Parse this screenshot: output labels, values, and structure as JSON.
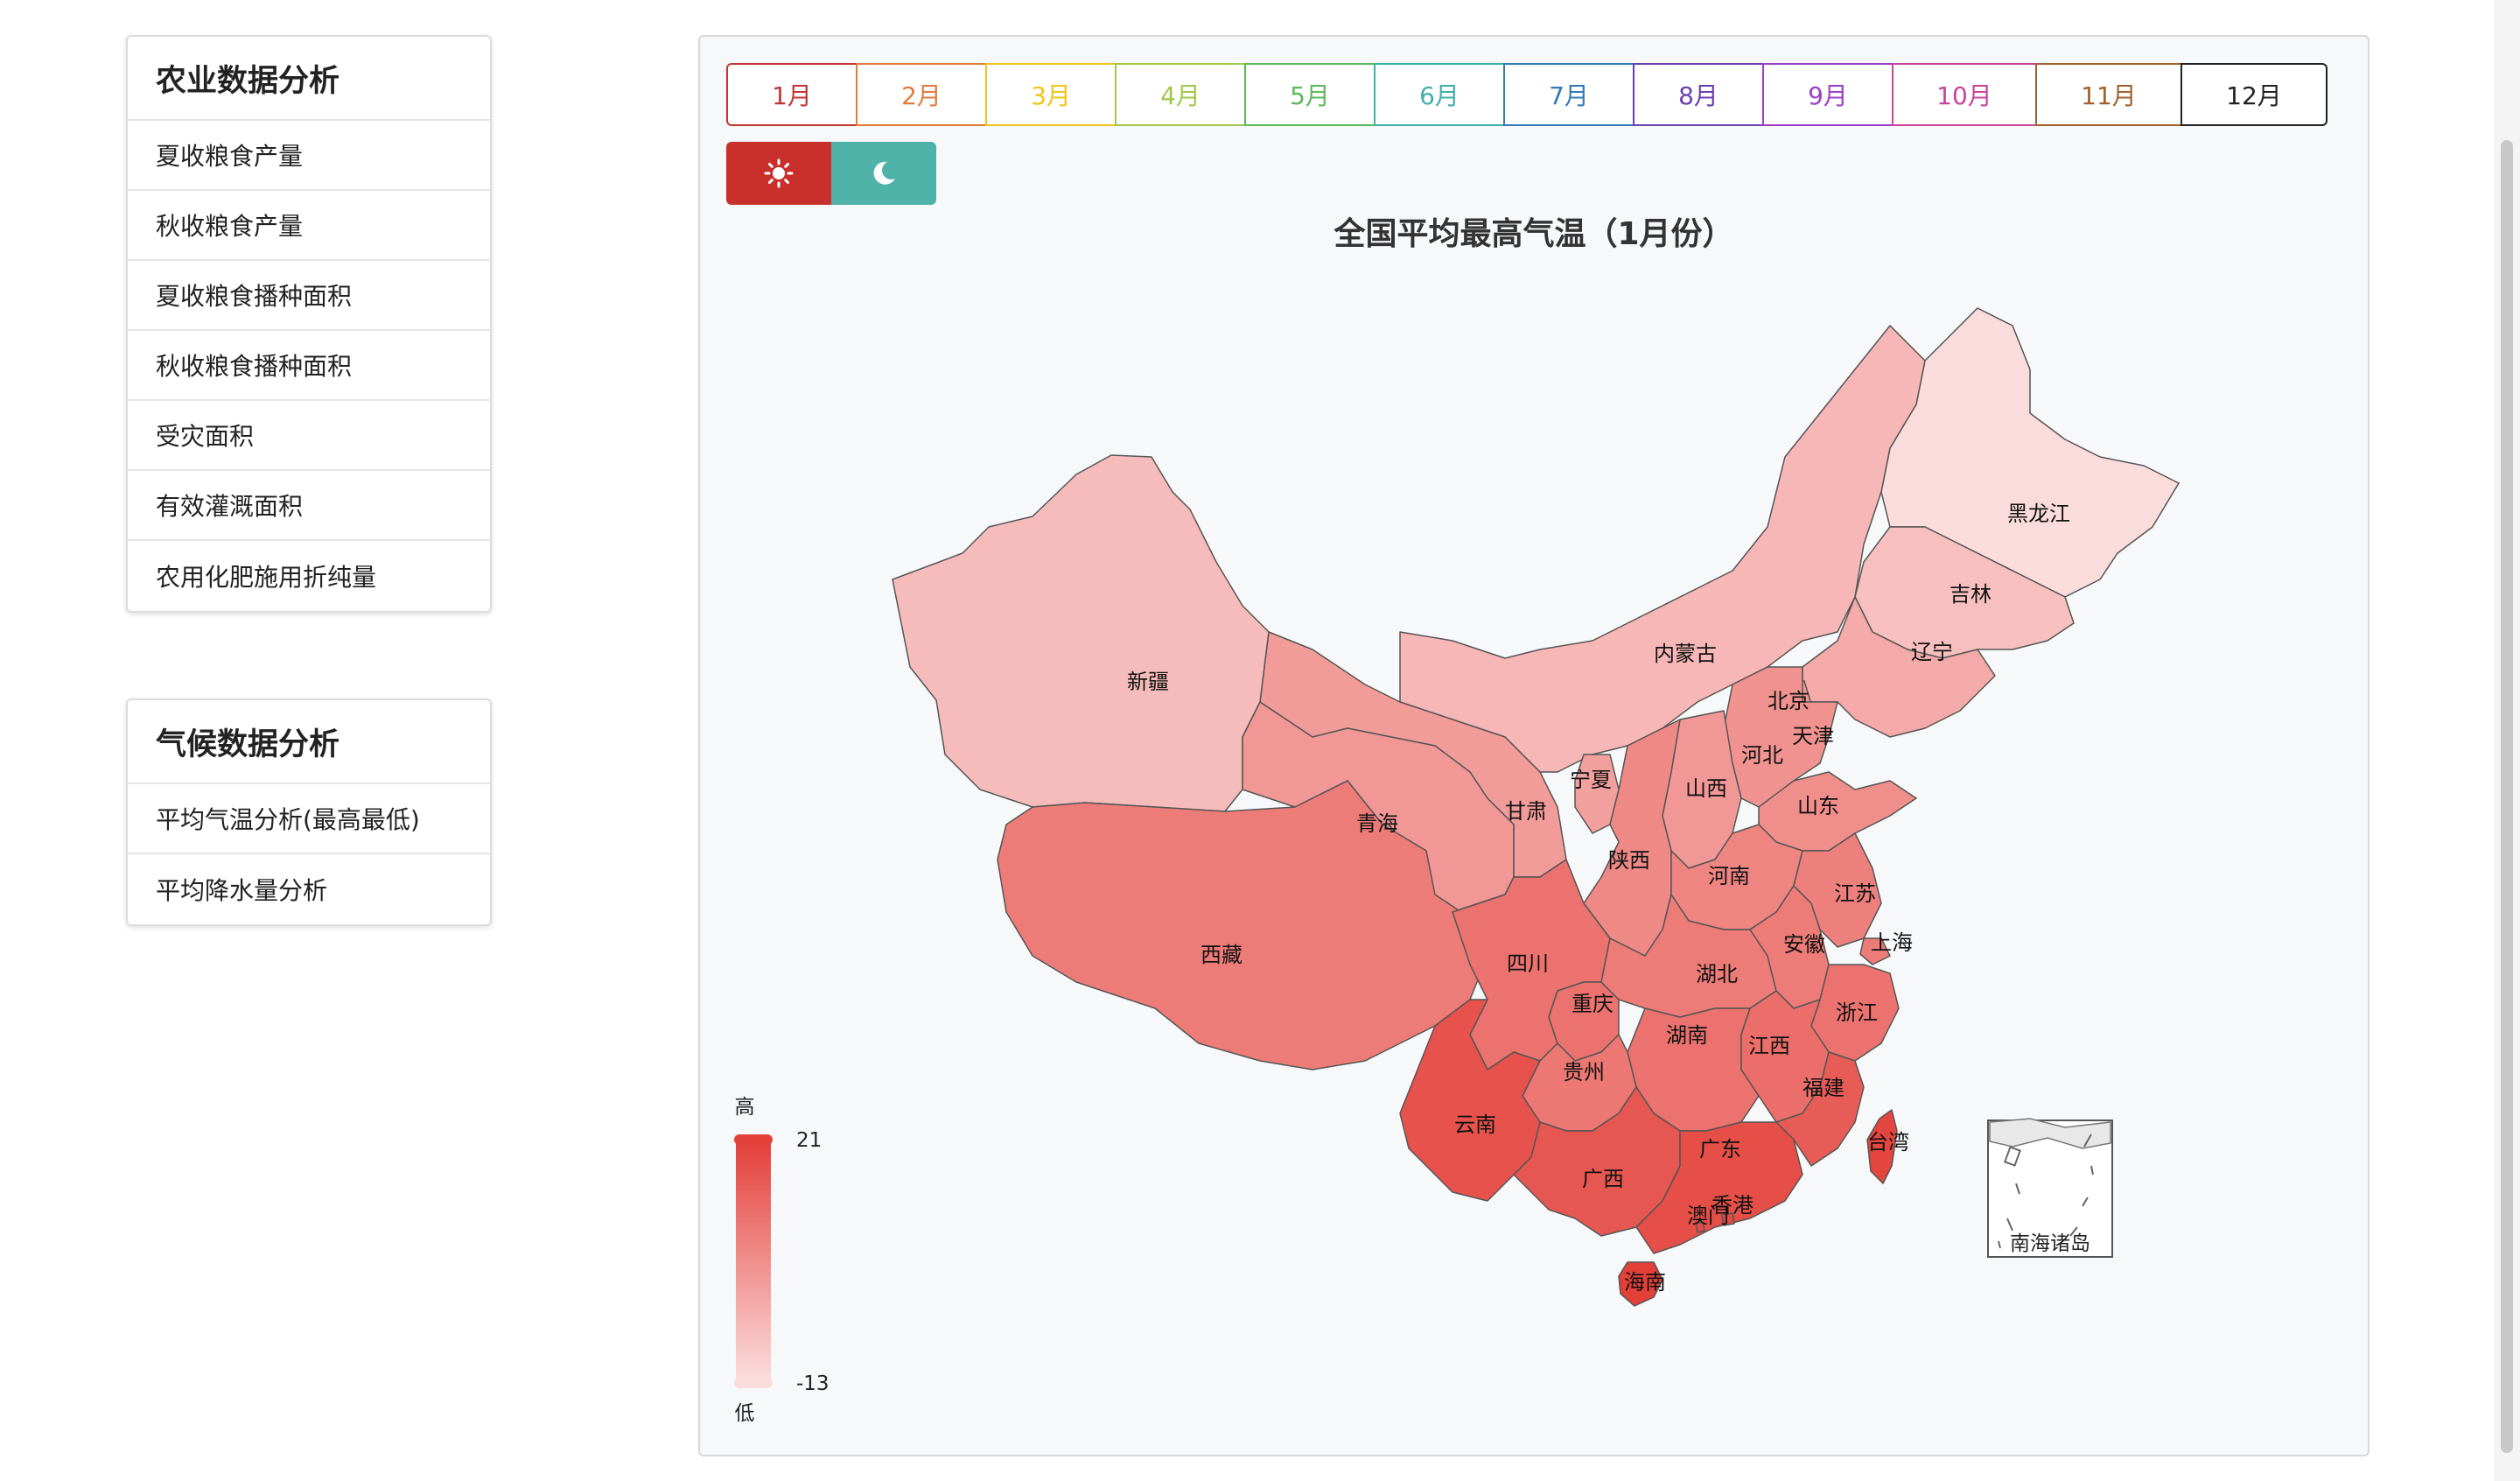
{
  "sidebar": {
    "agri": {
      "title": "农业数据分析",
      "items": [
        "夏收粮食产量",
        "秋收粮食产量",
        "夏收粮食播种面积",
        "秋收粮食播种面积",
        "受灾面积",
        "有效灌溉面积",
        "农用化肥施用折纯量"
      ]
    },
    "climate": {
      "title": "气候数据分析",
      "items": [
        "平均气温分析(最高最低)",
        "平均降水量分析"
      ]
    }
  },
  "month_tabs": [
    {
      "label": "1月",
      "color": "#c23531"
    },
    {
      "label": "2月",
      "color": "#e07b39"
    },
    {
      "label": "3月",
      "color": "#f0c419"
    },
    {
      "label": "4月",
      "color": "#a0c84a"
    },
    {
      "label": "5月",
      "color": "#5cb85c"
    },
    {
      "label": "6月",
      "color": "#3fb0a8"
    },
    {
      "label": "7月",
      "color": "#337ab7"
    },
    {
      "label": "8月",
      "color": "#6a3fb0"
    },
    {
      "label": "9月",
      "color": "#9b3fc8"
    },
    {
      "label": "10月",
      "color": "#c8449b"
    },
    {
      "label": "11月",
      "color": "#a0612d"
    },
    {
      "label": "12月",
      "color": "#222222"
    }
  ],
  "mode_toggle": {
    "day_icon": "sun-icon",
    "night_icon": "moon-icon",
    "day_color": "#c9302c",
    "night_color": "#4fb3aa"
  },
  "map": {
    "title": "全国平均最高气温（1月份）",
    "inset_label": "南海诸岛",
    "visual_map": {
      "max": "21",
      "min": "-13",
      "high_label": "高",
      "low_label": "低",
      "high_color": "#e4403a",
      "low_color": "#fbdcdc"
    },
    "provinces": [
      {
        "name": "黑龙江",
        "value": -13
      },
      {
        "name": "吉林",
        "value": -7
      },
      {
        "name": "辽宁",
        "value": -2
      },
      {
        "name": "内蒙古",
        "value": -5
      },
      {
        "name": "北京",
        "value": 2
      },
      {
        "name": "天津",
        "value": 2
      },
      {
        "name": "河北",
        "value": 3
      },
      {
        "name": "山西",
        "value": 2
      },
      {
        "name": "山东",
        "value": 4
      },
      {
        "name": "宁夏",
        "value": 0
      },
      {
        "name": "甘肃",
        "value": 1
      },
      {
        "name": "陕西",
        "value": 5
      },
      {
        "name": "新疆",
        "value": -6
      },
      {
        "name": "青海",
        "value": 2
      },
      {
        "name": "西藏",
        "value": 8
      },
      {
        "name": "四川",
        "value": 10
      },
      {
        "name": "重庆",
        "value": 10
      },
      {
        "name": "河南",
        "value": 6
      },
      {
        "name": "湖北",
        "value": 8
      },
      {
        "name": "安徽",
        "value": 8
      },
      {
        "name": "江苏",
        "value": 7
      },
      {
        "name": "上海",
        "value": 8
      },
      {
        "name": "浙江",
        "value": 10
      },
      {
        "name": "湖南",
        "value": 10
      },
      {
        "name": "江西",
        "value": 11
      },
      {
        "name": "贵州",
        "value": 9
      },
      {
        "name": "云南",
        "value": 17
      },
      {
        "name": "广西",
        "value": 16
      },
      {
        "name": "广东",
        "value": 18
      },
      {
        "name": "福建",
        "value": 15
      },
      {
        "name": "台湾",
        "value": 20
      },
      {
        "name": "海南",
        "value": 21
      },
      {
        "name": "香港",
        "value": 19
      },
      {
        "name": "澳门",
        "value": 19
      }
    ]
  }
}
